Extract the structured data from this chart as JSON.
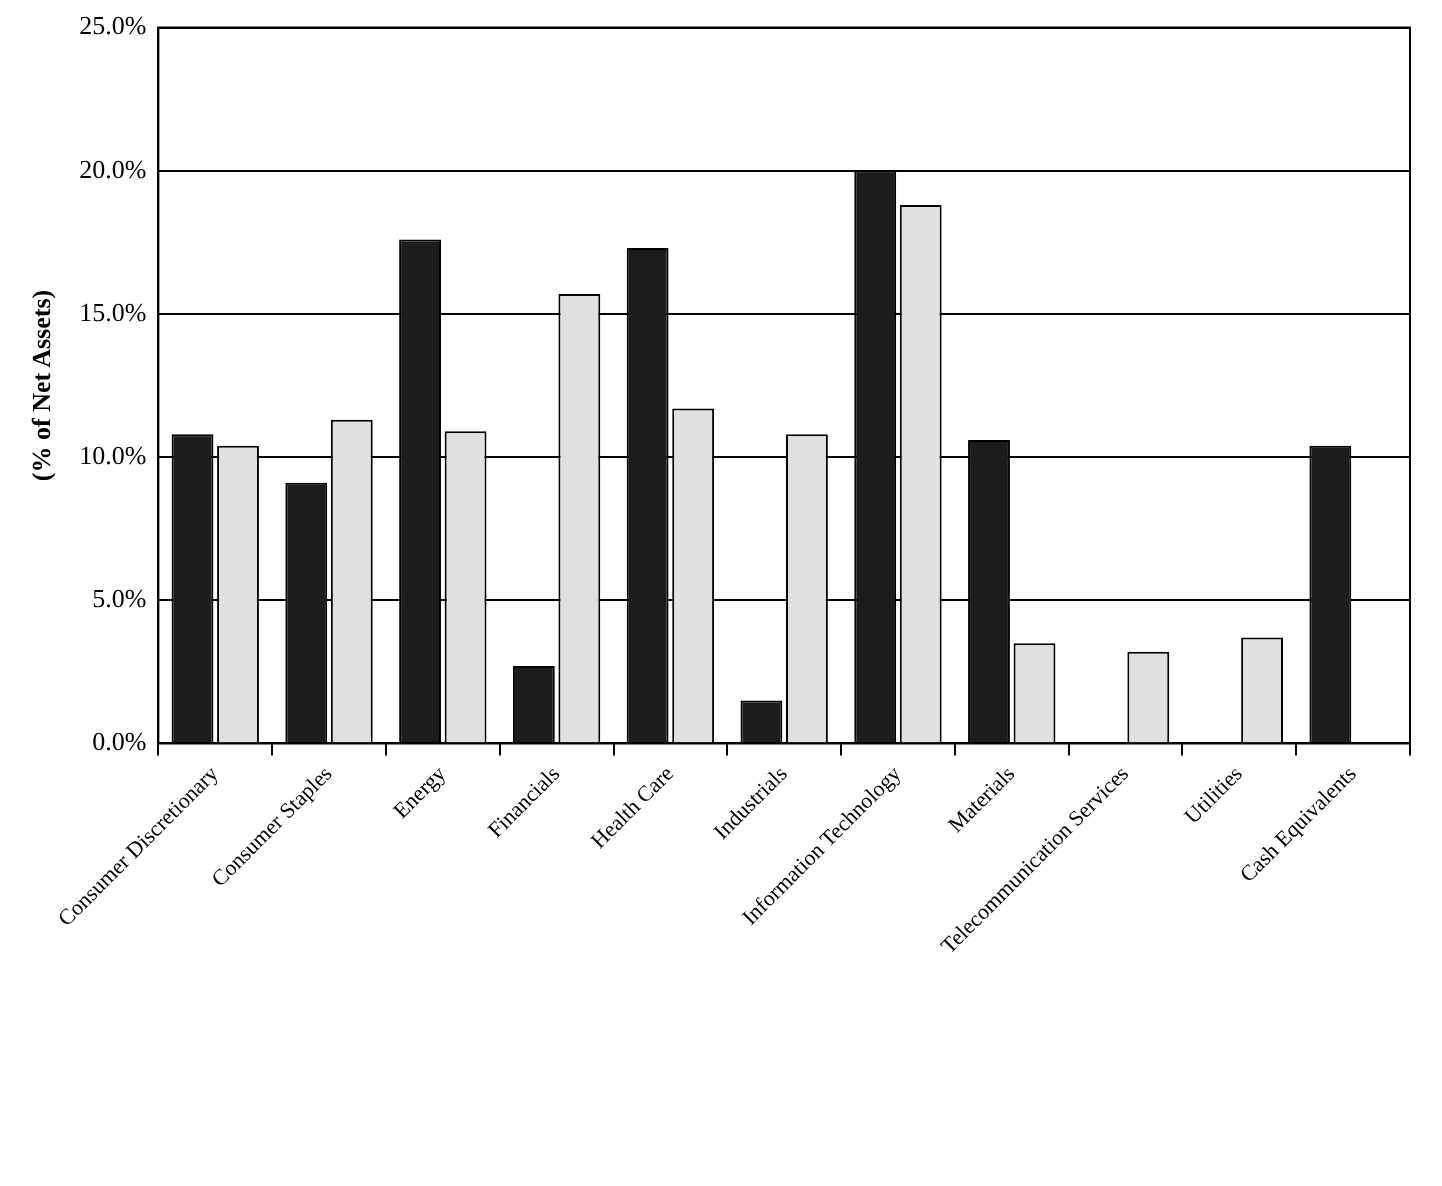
{
  "chart_data": {
    "type": "bar",
    "ylabel": "(% of Net Assets)",
    "categories": [
      "Consumer Discretionary",
      "Consumer Staples",
      "Energy",
      "Financials",
      "Health Care",
      "Industrials",
      "Information Technology",
      "Materials",
      "Telecommunication Services",
      "Utilities",
      "Cash Equivalents"
    ],
    "series": [
      {
        "color": "#1c1c1c",
        "values": [
          10.8,
          9.1,
          17.6,
          2.7,
          17.3,
          1.5,
          20.0,
          10.6,
          0,
          0,
          10.4
        ]
      },
      {
        "color": "#e0e0e0",
        "values": [
          10.4,
          11.3,
          10.9,
          15.7,
          11.7,
          10.8,
          18.8,
          3.5,
          3.2,
          3.7,
          0
        ]
      }
    ],
    "ylim": [
      0,
      25
    ],
    "yticks": [
      {
        "value": 0,
        "label": "0.0%"
      },
      {
        "value": 5,
        "label": "5.0%"
      },
      {
        "value": 10,
        "label": "10.0%"
      },
      {
        "value": 15,
        "label": "15.0%"
      },
      {
        "value": 20,
        "label": "20.0%"
      },
      {
        "value": 25,
        "label": "25.0%"
      }
    ],
    "grid": "y",
    "legend": false
  }
}
